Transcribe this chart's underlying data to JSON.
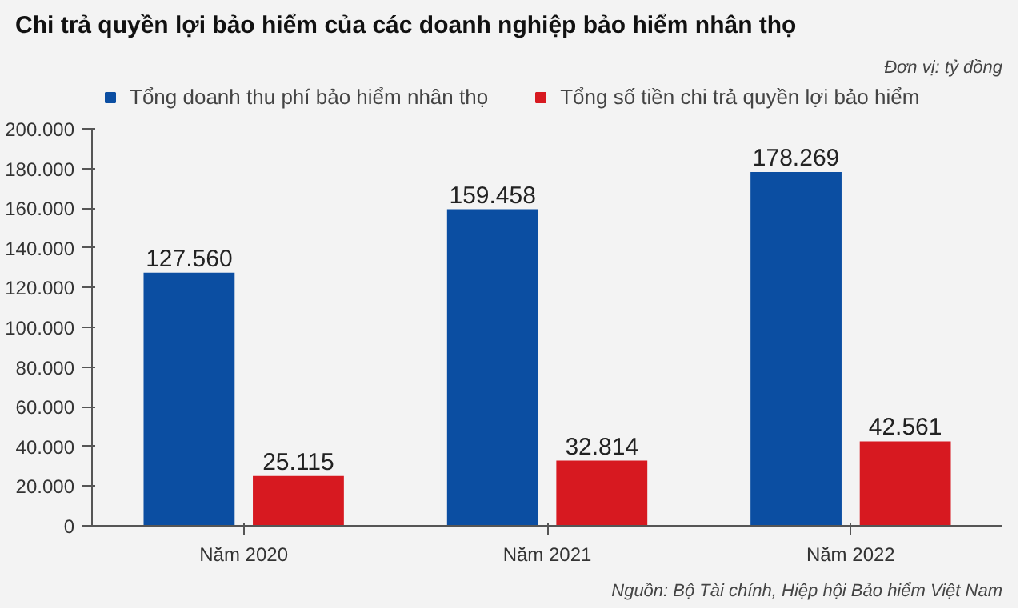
{
  "chart_data": {
    "type": "bar",
    "title": "Chi trả quyền lợi bảo hiểm của các doanh nghiệp bảo hiểm nhân thọ",
    "subtitle": "Đơn vị: tỷ đồng",
    "categories": [
      "Năm 2020",
      "Năm 2021",
      "Năm 2022"
    ],
    "series": [
      {
        "name": "Tổng doanh thu phí bảo hiểm nhân thọ",
        "color": "#0b4ea2",
        "values": [
          127560,
          159458,
          178269
        ],
        "value_labels": [
          "127.560",
          "159.458",
          "178.269"
        ]
      },
      {
        "name": "Tổng số tiền chi trả quyền lợi bảo hiểm",
        "color": "#d71920",
        "values": [
          25115,
          32814,
          42561
        ],
        "value_labels": [
          "25.115",
          "32.814",
          "42.561"
        ]
      }
    ],
    "ylim": [
      0,
      200000
    ],
    "yticks": [
      0,
      {
        "value": 20000,
        "label": "20.000"
      },
      {
        "value": 40000,
        "label": "40.000"
      },
      {
        "value": 60000,
        "label": "60.000"
      },
      {
        "value": 80000,
        "label": "80.000"
      },
      {
        "value": 100000,
        "label": "100.000"
      },
      {
        "value": 120000,
        "label": "120.000"
      },
      {
        "value": 140000,
        "label": "140.000"
      },
      {
        "value": 160000,
        "label": "160.000"
      },
      {
        "value": 180000,
        "label": "180.000"
      },
      {
        "value": 200000,
        "label": "200.000"
      }
    ],
    "legend": "top",
    "grid": false,
    "annotations": [
      "Nguồn: Bộ Tài chính, Hiệp hội Bảo hiểm Việt Nam"
    ]
  }
}
